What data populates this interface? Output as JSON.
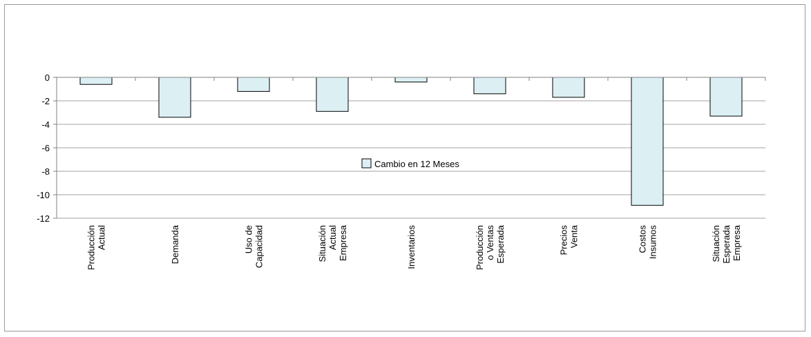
{
  "chart_data": {
    "type": "bar",
    "categories": [
      [
        "Producción",
        "Actual"
      ],
      [
        "Demanda"
      ],
      [
        "Uso de",
        "Capacidad"
      ],
      [
        "Situación",
        "Actual",
        "Empresa"
      ],
      [
        "Inventarios"
      ],
      [
        "Producción",
        "o Ventas",
        "Esperada"
      ],
      [
        "Precios",
        "Venta"
      ],
      [
        "Costos",
        "Insumos"
      ],
      [
        "Situación",
        "Esperada",
        "Empresa"
      ]
    ],
    "series": [
      {
        "name": "Cambio en 12 Meses",
        "values": [
          -0.6,
          -3.4,
          -1.2,
          -2.9,
          -0.4,
          -1.4,
          -1.7,
          -10.9,
          -3.3
        ]
      }
    ],
    "ylim": [
      -12,
      0
    ],
    "yticks": [
      0,
      -2,
      -4,
      -6,
      -8,
      -10,
      -12
    ],
    "grid": true,
    "legend_position": "center",
    "colors": {
      "bar_fill": "#dcf0f4",
      "bar_stroke": "#000000",
      "grid": "#a0a0a0",
      "axis": "#808080"
    }
  }
}
